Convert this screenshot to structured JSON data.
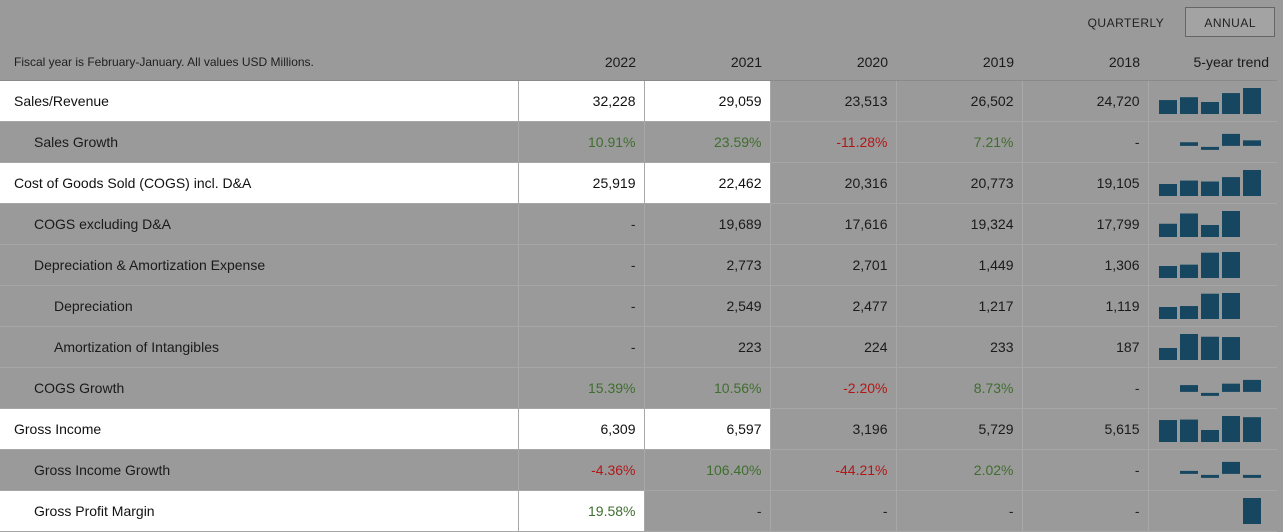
{
  "toggle": {
    "quarterly": "QUARTERLY",
    "annual": "ANNUAL",
    "active": "annual"
  },
  "header": {
    "note": "Fiscal year is February-January. All values USD Millions.",
    "years": [
      "2022",
      "2021",
      "2020",
      "2019",
      "2018"
    ],
    "trend": "5-year trend"
  },
  "colors": {
    "positive": "#3f6e2e",
    "negative": "#b01818",
    "trend_bar": "#174760",
    "highlight": "#ffffff"
  },
  "rows": [
    {
      "label": "Sales/Revenue",
      "indent": 0,
      "kind": "abs",
      "hl": 2,
      "values": [
        "32,228",
        "29,059",
        "23,513",
        "26,502",
        "24,720"
      ],
      "trend": [
        24720,
        26502,
        23513,
        29059,
        32228
      ]
    },
    {
      "label": "Sales Growth",
      "indent": 1,
      "kind": "pct",
      "hl": 0,
      "values": [
        "10.91%",
        "23.59%",
        "-11.28%",
        "7.21%",
        "-"
      ],
      "trend": [
        null,
        7.21,
        -11.28,
        23.59,
        10.91
      ]
    },
    {
      "label": "Cost of Goods Sold (COGS) incl. D&A",
      "indent": 0,
      "kind": "abs",
      "hl": 2,
      "values": [
        "25,919",
        "22,462",
        "20,316",
        "20,773",
        "19,105"
      ],
      "trend": [
        19105,
        20773,
        20316,
        22462,
        25919
      ]
    },
    {
      "label": "COGS excluding D&A",
      "indent": 1,
      "kind": "abs",
      "hl": 0,
      "values": [
        "-",
        "19,689",
        "17,616",
        "19,324",
        "17,799"
      ],
      "trend": [
        17799,
        19324,
        17616,
        19689,
        null
      ]
    },
    {
      "label": "Depreciation & Amortization Expense",
      "indent": 1,
      "kind": "abs",
      "hl": 0,
      "values": [
        "-",
        "2,773",
        "2,701",
        "1,449",
        "1,306"
      ],
      "trend": [
        1306,
        1449,
        2701,
        2773,
        null
      ]
    },
    {
      "label": "Depreciation",
      "indent": 2,
      "kind": "abs",
      "hl": 0,
      "values": [
        "-",
        "2,549",
        "2,477",
        "1,217",
        "1,119"
      ],
      "trend": [
        1119,
        1217,
        2477,
        2549,
        null
      ]
    },
    {
      "label": "Amortization of Intangibles",
      "indent": 2,
      "kind": "abs",
      "hl": 0,
      "values": [
        "-",
        "223",
        "224",
        "233",
        "187"
      ],
      "trend": [
        187,
        233,
        224,
        223,
        null
      ]
    },
    {
      "label": "COGS Growth",
      "indent": 1,
      "kind": "pct",
      "hl": 0,
      "values": [
        "15.39%",
        "10.56%",
        "-2.20%",
        "8.73%",
        "-"
      ],
      "trend": [
        null,
        8.73,
        -2.2,
        10.56,
        15.39
      ]
    },
    {
      "label": "Gross Income",
      "indent": 0,
      "kind": "abs",
      "hl": 2,
      "values": [
        "6,309",
        "6,597",
        "3,196",
        "5,729",
        "5,615"
      ],
      "trend": [
        5615,
        5729,
        3196,
        6597,
        6309
      ]
    },
    {
      "label": "Gross Income Growth",
      "indent": 1,
      "kind": "pct",
      "hl": 0,
      "values": [
        "-4.36%",
        "106.40%",
        "-44.21%",
        "2.02%",
        "-"
      ],
      "trend": [
        null,
        2.02,
        -44.21,
        106.4,
        -4.36
      ]
    },
    {
      "label": "Gross Profit Margin",
      "indent": 1,
      "kind": "abs",
      "hl": 1,
      "values": [
        "19.58%",
        "-",
        "-",
        "-",
        "-"
      ],
      "trend": [
        null,
        null,
        null,
        null,
        19.58
      ]
    }
  ]
}
